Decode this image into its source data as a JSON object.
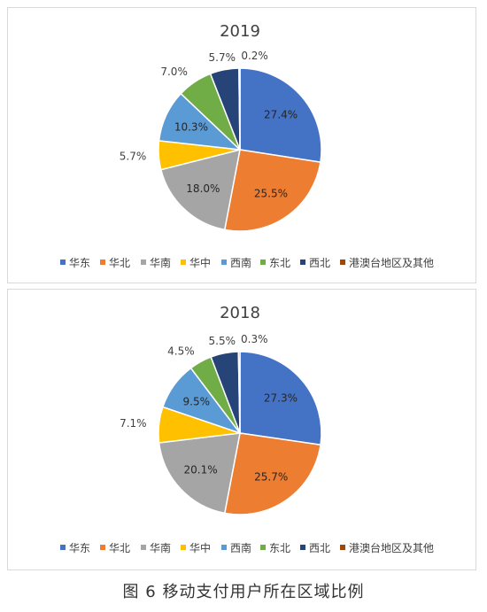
{
  "chart_data": [
    {
      "type": "pie",
      "title": "2019",
      "categories": [
        "华东",
        "华北",
        "华南",
        "华中",
        "西南",
        "东北",
        "西北",
        "港澳台地区及其他"
      ],
      "values": [
        27.4,
        25.5,
        18.0,
        5.7,
        10.3,
        7.0,
        5.7,
        0.2
      ],
      "data_labels": [
        "27.4%",
        "25.5%",
        "18.0%",
        "5.7%",
        "10.3%",
        "7.0%",
        "5.7%",
        "0.2%"
      ],
      "colors": [
        "#4472c4",
        "#ed7d31",
        "#a5a5a5",
        "#ffc000",
        "#5b9bd5",
        "#70ad47",
        "#264478",
        "#9e480e"
      ],
      "legend_position": "bottom"
    },
    {
      "type": "pie",
      "title": "2018",
      "categories": [
        "华东",
        "华北",
        "华南",
        "华中",
        "西南",
        "东北",
        "西北",
        "港澳台地区及其他"
      ],
      "values": [
        27.3,
        25.7,
        20.1,
        7.1,
        9.5,
        4.5,
        5.5,
        0.3
      ],
      "data_labels": [
        "27.3%",
        "25.7%",
        "20.1%",
        "7.1%",
        "9.5%",
        "4.5%",
        "5.5%",
        "0.3%"
      ],
      "colors": [
        "#4472c4",
        "#ed7d31",
        "#a5a5a5",
        "#ffc000",
        "#5b9bd5",
        "#70ad47",
        "#264478",
        "#9e480e"
      ],
      "legend_position": "bottom"
    }
  ],
  "caption": "图 6 移动支付用户所在区域比例"
}
